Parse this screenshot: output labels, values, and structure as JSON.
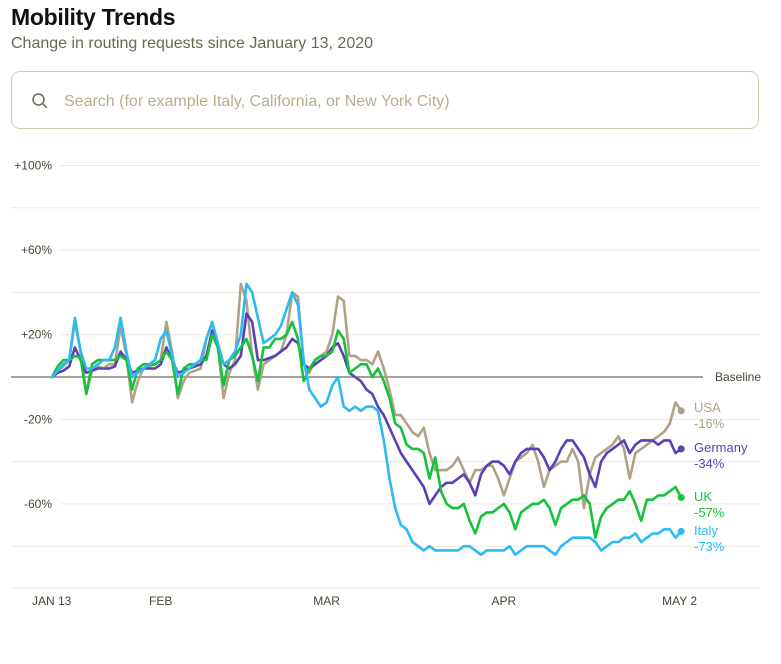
{
  "header": {
    "title": "Mobility Trends",
    "subtitle": "Change in routing requests since January 13, 2020"
  },
  "search": {
    "placeholder": "Search (for example Italy, California, or New York City)",
    "value": "",
    "icon": "search-icon"
  },
  "chart_data": {
    "type": "line",
    "title": "Mobility Trends",
    "subtitle": "Change in routing requests since January 13, 2020",
    "xlabel": "",
    "ylabel": "",
    "ylim": [
      -100,
      100
    ],
    "grid": true,
    "y_ticks": [
      {
        "value": 100,
        "label": "+100%"
      },
      {
        "value": 60,
        "label": "+60%"
      },
      {
        "value": 20,
        "label": "+20%"
      },
      {
        "value": -20,
        "label": "-20%"
      },
      {
        "value": -60,
        "label": "-60%"
      }
    ],
    "gridline_values": [
      100,
      80,
      60,
      40,
      20,
      -20,
      -40,
      -60,
      -80
    ],
    "baseline": {
      "value": 0,
      "label": "Baseline"
    },
    "x_start": "2020-01-13",
    "x_ticks": [
      {
        "day": 0,
        "label": "JAN 13"
      },
      {
        "day": 19,
        "label": "FEB"
      },
      {
        "day": 48,
        "label": "MAR"
      },
      {
        "day": 79,
        "label": "APR"
      },
      {
        "day": 110,
        "label": "MAY 2"
      }
    ],
    "legend_placement": "right (end-of-line labels)",
    "series": [
      {
        "name": "USA",
        "final_label": "-16%",
        "color": "#aea387",
        "values": [
          0,
          3,
          5,
          8,
          26,
          12,
          -8,
          3,
          5,
          4,
          6,
          6,
          24,
          10,
          -12,
          -2,
          4,
          5,
          6,
          8,
          26,
          12,
          -10,
          -2,
          2,
          3,
          4,
          18,
          26,
          14,
          -10,
          2,
          8,
          44,
          36,
          10,
          -6,
          6,
          8,
          10,
          12,
          20,
          40,
          38,
          6,
          2,
          8,
          10,
          12,
          20,
          38,
          36,
          10,
          10,
          8,
          8,
          6,
          12,
          4,
          -6,
          -18,
          -18,
          -22,
          -26,
          -28,
          -24,
          -36,
          -44,
          -44,
          -44,
          -42,
          -38,
          -44,
          -50,
          -44,
          -44,
          -42,
          -42,
          -48,
          -56,
          -48,
          -40,
          -38,
          -36,
          -32,
          -40,
          -52,
          -44,
          -42,
          -40,
          -40,
          -34,
          -40,
          -62,
          -46,
          -38,
          -36,
          -34,
          -32,
          -28,
          -34,
          -48,
          -36,
          -34,
          -32,
          -30,
          -28,
          -26,
          -22,
          -12,
          -16
        ]
      },
      {
        "name": "Germany",
        "final_label": "-34%",
        "color": "#5b3fb5",
        "values": [
          0,
          2,
          3,
          5,
          14,
          8,
          2,
          3,
          4,
          4,
          4,
          5,
          12,
          8,
          2,
          3,
          4,
          4,
          4,
          6,
          14,
          8,
          2,
          3,
          4,
          5,
          6,
          10,
          22,
          14,
          6,
          4,
          6,
          10,
          30,
          26,
          8,
          8,
          9,
          10,
          12,
          14,
          18,
          16,
          6,
          4,
          6,
          8,
          10,
          14,
          16,
          10,
          2,
          0,
          -2,
          -6,
          -8,
          -14,
          -18,
          -24,
          -30,
          -36,
          -40,
          -44,
          -48,
          -52,
          -60,
          -56,
          -52,
          -50,
          -50,
          -48,
          -46,
          -50,
          -56,
          -46,
          -42,
          -40,
          -40,
          -42,
          -46,
          -40,
          -36,
          -34,
          -34,
          -34,
          -38,
          -44,
          -40,
          -34,
          -30,
          -30,
          -34,
          -38,
          -46,
          -52,
          -40,
          -36,
          -34,
          -32,
          -30,
          -36,
          -32,
          -30,
          -30,
          -30,
          -32,
          -30,
          -30,
          -36,
          -34
        ]
      },
      {
        "name": "UK",
        "final_label": "-57%",
        "color": "#16c23a",
        "values": [
          0,
          5,
          8,
          8,
          10,
          9,
          -8,
          6,
          8,
          8,
          8,
          8,
          10,
          8,
          -6,
          4,
          6,
          6,
          6,
          8,
          12,
          8,
          -8,
          4,
          6,
          6,
          8,
          8,
          20,
          14,
          -4,
          8,
          10,
          14,
          18,
          10,
          -2,
          14,
          14,
          18,
          18,
          20,
          26,
          18,
          -2,
          4,
          8,
          10,
          10,
          12,
          22,
          18,
          2,
          4,
          6,
          6,
          0,
          4,
          -2,
          -10,
          -22,
          -24,
          -32,
          -34,
          -34,
          -36,
          -48,
          -38,
          -54,
          -60,
          -62,
          -62,
          -60,
          -68,
          -74,
          -66,
          -64,
          -64,
          -62,
          -60,
          -64,
          -72,
          -64,
          -62,
          -60,
          -60,
          -58,
          -62,
          -70,
          -62,
          -60,
          -58,
          -58,
          -56,
          -60,
          -76,
          -66,
          -62,
          -60,
          -58,
          -58,
          -54,
          -60,
          -68,
          -58,
          -58,
          -56,
          -56,
          -54,
          -52,
          -57
        ]
      },
      {
        "name": "Italy",
        "final_label": "-73%",
        "color": "#2dbaf2",
        "values": [
          0,
          3,
          6,
          8,
          28,
          12,
          4,
          4,
          6,
          8,
          8,
          14,
          28,
          12,
          0,
          2,
          4,
          6,
          8,
          18,
          22,
          10,
          0,
          2,
          4,
          6,
          8,
          18,
          26,
          16,
          6,
          8,
          12,
          20,
          44,
          40,
          28,
          16,
          18,
          20,
          24,
          32,
          40,
          34,
          8,
          -6,
          -10,
          -14,
          -12,
          -4,
          0,
          -14,
          -16,
          -14,
          -16,
          -14,
          -14,
          -16,
          -30,
          -48,
          -62,
          -70,
          -72,
          -78,
          -80,
          -82,
          -80,
          -82,
          -82,
          -82,
          -82,
          -82,
          -80,
          -80,
          -82,
          -84,
          -82,
          -82,
          -82,
          -82,
          -80,
          -84,
          -82,
          -80,
          -80,
          -80,
          -80,
          -82,
          -84,
          -80,
          -78,
          -76,
          -76,
          -76,
          -76,
          -78,
          -82,
          -80,
          -78,
          -78,
          -76,
          -76,
          -74,
          -78,
          -76,
          -74,
          -74,
          -72,
          -72,
          -76,
          -73
        ]
      }
    ]
  }
}
